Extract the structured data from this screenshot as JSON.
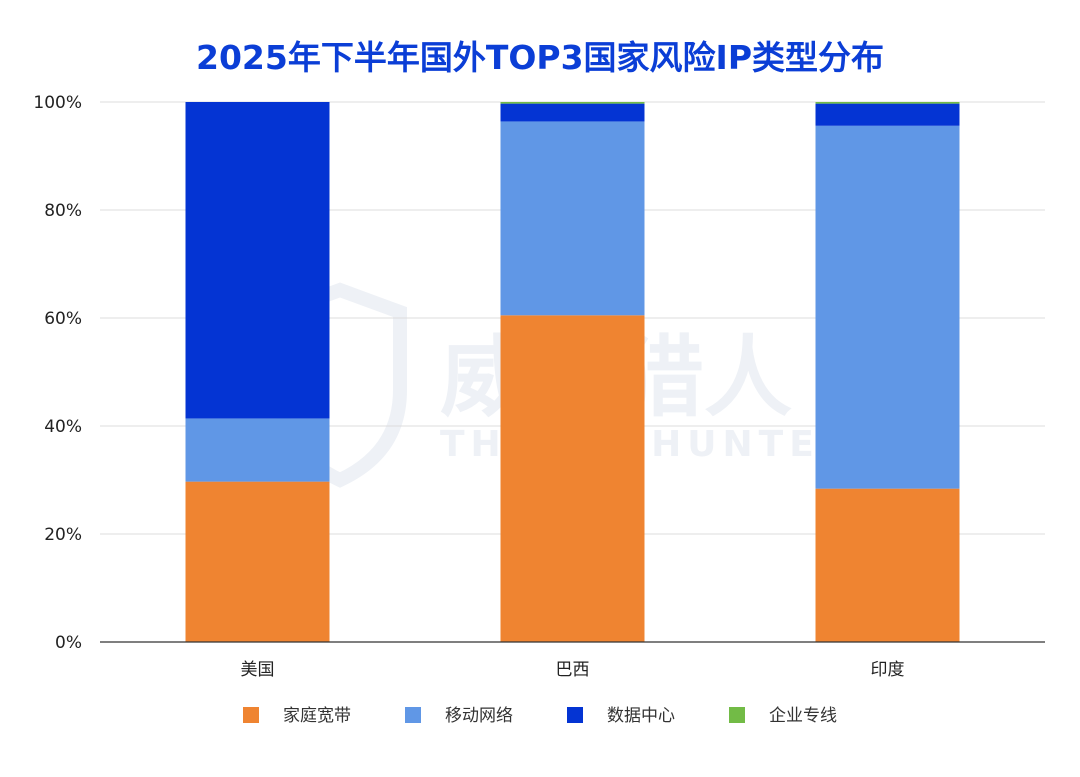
{
  "watermark": {
    "name_cn": "威胁猎人",
    "name_en": "THREAT HUNTER"
  },
  "chart_data": {
    "type": "bar",
    "stacked": true,
    "title": "2025年下半年国外TOP3国家风险IP类型分布",
    "xlabel": "",
    "ylabel": "",
    "ylim": [
      0,
      100
    ],
    "y_ticks": [
      "0%",
      "20%",
      "40%",
      "60%",
      "80%",
      "100%"
    ],
    "grid": true,
    "legend_position": "bottom",
    "categories": [
      "美国",
      "巴西",
      "印度"
    ],
    "series": [
      {
        "name": "家庭宽带",
        "color": "#ef8431",
        "values": [
          29.7,
          60.5,
          28.4
        ]
      },
      {
        "name": "移动网络",
        "color": "#6097e6",
        "values": [
          11.7,
          35.9,
          67.2
        ]
      },
      {
        "name": "数据中心",
        "color": "#0434d3",
        "values": [
          58.6,
          3.3,
          4.1
        ]
      },
      {
        "name": "企业专线",
        "color": "#72bb46",
        "values": [
          0.0,
          0.3,
          0.3
        ]
      }
    ]
  }
}
